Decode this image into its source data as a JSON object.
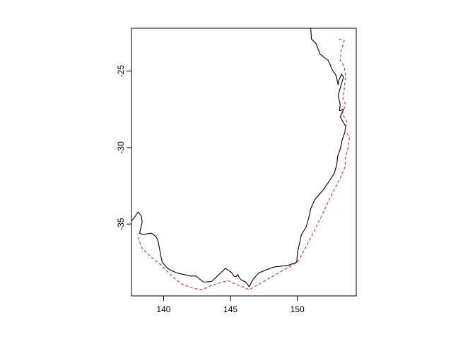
{
  "chart_data": {
    "type": "map",
    "title": "",
    "xlabel": "",
    "ylabel": "",
    "xlim": [
      137.6,
      154.4
    ],
    "ylim": [
      -39.7,
      -22.2
    ],
    "x_ticks": [
      140,
      145,
      150
    ],
    "x_tick_labels": [
      "140",
      "145",
      "150"
    ],
    "y_ticks": [
      -25,
      -30,
      -35
    ],
    "y_tick_labels": [
      "-25",
      "-30",
      "-35"
    ],
    "grid": false,
    "legend": "none",
    "series": [
      {
        "style": "solid",
        "color": "#000000",
        "points": [
          [
            151.0,
            -22.2
          ],
          [
            151.05,
            -22.9
          ],
          [
            151.4,
            -23.2
          ],
          [
            151.7,
            -23.9
          ],
          [
            152.0,
            -24.1
          ],
          [
            152.3,
            -24.3
          ],
          [
            152.6,
            -24.9
          ],
          [
            152.9,
            -25.3
          ],
          [
            153.05,
            -25.9
          ],
          [
            153.1,
            -25.6
          ],
          [
            153.3,
            -25.2
          ],
          [
            153.45,
            -25.4
          ],
          [
            153.2,
            -26.1
          ],
          [
            153.05,
            -26.6
          ],
          [
            153.2,
            -27.2
          ],
          [
            153.15,
            -27.6
          ],
          [
            153.45,
            -27.5
          ],
          [
            153.2,
            -28.0
          ],
          [
            153.6,
            -28.6
          ],
          [
            153.55,
            -29.0
          ],
          [
            153.35,
            -29.5
          ],
          [
            153.2,
            -30.1
          ],
          [
            153.0,
            -30.6
          ],
          [
            152.95,
            -31.1
          ],
          [
            152.75,
            -31.7
          ],
          [
            152.3,
            -32.3
          ],
          [
            151.9,
            -32.8
          ],
          [
            151.3,
            -33.4
          ],
          [
            151.0,
            -34.0
          ],
          [
            150.85,
            -34.6
          ],
          [
            150.65,
            -35.2
          ],
          [
            150.3,
            -35.7
          ],
          [
            150.15,
            -36.3
          ],
          [
            150.0,
            -36.9
          ],
          [
            149.95,
            -37.5
          ],
          [
            149.3,
            -37.7
          ],
          [
            148.3,
            -37.8
          ],
          [
            147.8,
            -37.95
          ],
          [
            147.1,
            -38.2
          ],
          [
            146.7,
            -38.6
          ],
          [
            146.4,
            -39.1
          ],
          [
            146.15,
            -38.8
          ],
          [
            145.8,
            -38.65
          ],
          [
            145.65,
            -38.5
          ],
          [
            145.55,
            -38.3
          ],
          [
            145.4,
            -38.45
          ],
          [
            145.25,
            -38.4
          ],
          [
            145.1,
            -38.2
          ],
          [
            144.9,
            -38.05
          ],
          [
            144.6,
            -37.9
          ],
          [
            144.45,
            -38.05
          ],
          [
            144.2,
            -38.25
          ],
          [
            143.6,
            -38.75
          ],
          [
            143.0,
            -38.8
          ],
          [
            142.4,
            -38.4
          ],
          [
            142.0,
            -38.4
          ],
          [
            141.5,
            -38.3
          ],
          [
            141.0,
            -38.2
          ],
          [
            140.6,
            -38.05
          ],
          [
            140.3,
            -37.9
          ],
          [
            139.9,
            -37.5
          ],
          [
            139.8,
            -37.1
          ],
          [
            139.7,
            -36.6
          ],
          [
            139.55,
            -36.0
          ],
          [
            139.4,
            -35.8
          ],
          [
            139.1,
            -35.6
          ],
          [
            138.7,
            -35.65
          ],
          [
            138.5,
            -35.7
          ],
          [
            138.2,
            -35.6
          ],
          [
            138.4,
            -34.9
          ],
          [
            138.35,
            -34.5
          ],
          [
            138.1,
            -34.2
          ],
          [
            137.8,
            -34.6
          ],
          [
            137.6,
            -34.8
          ]
        ]
      },
      {
        "style": "dashed",
        "color": "#DF2A2A",
        "points": [
          [
            153.1,
            -22.9
          ],
          [
            153.5,
            -23.0
          ],
          [
            153.3,
            -23.6
          ],
          [
            153.2,
            -24.3
          ],
          [
            153.5,
            -24.7
          ],
          [
            153.6,
            -25.3
          ],
          [
            153.5,
            -26.2
          ],
          [
            153.4,
            -26.8
          ],
          [
            153.6,
            -27.2
          ],
          [
            153.35,
            -27.8
          ],
          [
            153.7,
            -28.3
          ],
          [
            153.55,
            -28.9
          ],
          [
            153.9,
            -29.3
          ],
          [
            153.8,
            -30.0
          ],
          [
            153.6,
            -30.6
          ],
          [
            153.55,
            -31.3
          ],
          [
            153.2,
            -32.0
          ],
          [
            152.5,
            -33.2
          ],
          [
            151.8,
            -34.5
          ],
          [
            151.0,
            -35.9
          ],
          [
            150.4,
            -36.9
          ],
          [
            150.0,
            -37.5
          ],
          [
            148.2,
            -38.4
          ],
          [
            146.4,
            -39.3
          ],
          [
            145.3,
            -38.9
          ],
          [
            144.8,
            -38.7
          ],
          [
            143.6,
            -39.0
          ],
          [
            142.9,
            -39.3
          ],
          [
            142.2,
            -39.2
          ],
          [
            141.3,
            -38.9
          ],
          [
            140.5,
            -38.3
          ],
          [
            139.7,
            -37.6
          ],
          [
            139.0,
            -37.1
          ],
          [
            138.4,
            -36.6
          ],
          [
            138.0,
            -35.7
          ]
        ]
      }
    ]
  }
}
